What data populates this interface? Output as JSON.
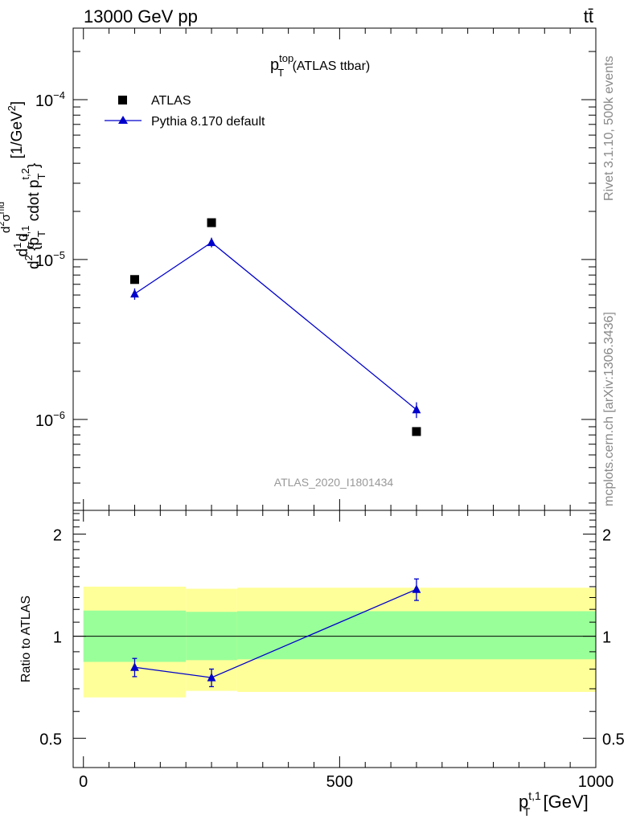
{
  "header": {
    "energy": "13000 GeV pp",
    "process": "tt̄"
  },
  "side_labels": {
    "rivet": "Rivet 3.1.10,  500k events",
    "mcplots": "mcplots.cern.ch [arXiv:1306.3436]"
  },
  "colors": {
    "data": "#000000",
    "mc": "#0000cc",
    "band_inner": "#99ff99",
    "band_outer": "#ffff99"
  },
  "chart_data": [
    {
      "type": "scatter",
      "title_main": "p",
      "title_sup": "top",
      "title_sub": "T",
      "title_suffix": " (ATLAS ttbar)",
      "watermark": "ATLAS_2020_I1801434",
      "ylabel": "d²σ/d²{p_T^{t,1} cdot p_T^{t,2}} [1/GeV²]",
      "ylabel_parts": {
        "prefix": "d",
        "frac_num": "1",
        "frac_den": "σ",
        "d": "d",
        "num_main": "d",
        "num_sup": "2",
        "num_rest": "σ",
        "num_sup2": "rfid",
        "den_main": "d",
        "den_sup": "2",
        "den_rest": " {p",
        "den_t": "T",
        "den_t1sup": "t,1",
        "den_mid": " cdot p",
        "den_t2": "T",
        "den_t2sup": "t,2",
        "den_end": "}",
        "units": " [1/GeV",
        "units_sup": "2",
        "units_end": "]"
      },
      "yscale": "log",
      "ylim": [
        2.7e-07,
        0.00028
      ],
      "xlim": [
        -20,
        1000
      ],
      "ytick_labels": [
        {
          "value": 0.0001,
          "base": "10",
          "exp": "−4"
        },
        {
          "value": 1e-05,
          "base": "10",
          "exp": "−5"
        },
        {
          "value": 1e-06,
          "base": "10",
          "exp": "−6"
        }
      ],
      "legend": [
        {
          "name": "ATLAS",
          "marker": "square"
        },
        {
          "name": "Pythia 8.170 default",
          "marker": "triangle"
        }
      ],
      "legend_position": "top-left",
      "series": [
        {
          "name": "ATLAS",
          "x": [
            100,
            250,
            650
          ],
          "y": [
            7.5e-06,
            1.7e-05,
            8.4e-07
          ],
          "xerr": [
            100,
            50,
            350
          ]
        },
        {
          "name": "Pythia 8.170 default",
          "x": [
            100,
            250,
            650
          ],
          "y": [
            6.1e-06,
            1.28e-05,
            1.15e-06
          ],
          "yerr_up": [
            5e-07,
            9e-07,
            1.3e-07
          ],
          "yerr_down": [
            5e-07,
            9e-07,
            1.3e-07
          ]
        }
      ]
    },
    {
      "type": "scatter",
      "ylabel": "Ratio to ATLAS",
      "xlabel_main": "p",
      "xlabel_sup": "t,1",
      "xlabel_sub": "T",
      "xlabel_units": " [GeV]",
      "yscale": "log",
      "ylim": [
        0.41,
        2.35
      ],
      "xlim": [
        -20,
        1000
      ],
      "xticks": [
        0,
        500,
        1000
      ],
      "xtick_labels": [
        "0",
        "500",
        "1000"
      ],
      "yticks": [
        0.5,
        1,
        2
      ],
      "ytick_labels": [
        "0.5",
        "1",
        "2"
      ],
      "reference_line": 1,
      "bands": [
        {
          "x0": 0,
          "x1": 200,
          "inner": [
            0.84,
            1.19
          ],
          "outer": [
            0.66,
            1.4
          ]
        },
        {
          "x0": 200,
          "x1": 300,
          "inner": [
            0.85,
            1.18
          ],
          "outer": [
            0.69,
            1.38
          ]
        },
        {
          "x0": 300,
          "x1": 1000,
          "inner": [
            0.855,
            1.185
          ],
          "outer": [
            0.685,
            1.39
          ]
        }
      ],
      "series": [
        {
          "name": "Pythia 8.170 default / ATLAS",
          "x": [
            100,
            250,
            650
          ],
          "y": [
            0.81,
            0.755,
            1.375
          ],
          "yerr_up": [
            0.05,
            0.045,
            0.1
          ],
          "yerr_down": [
            0.05,
            0.045,
            0.1
          ]
        }
      ]
    }
  ]
}
